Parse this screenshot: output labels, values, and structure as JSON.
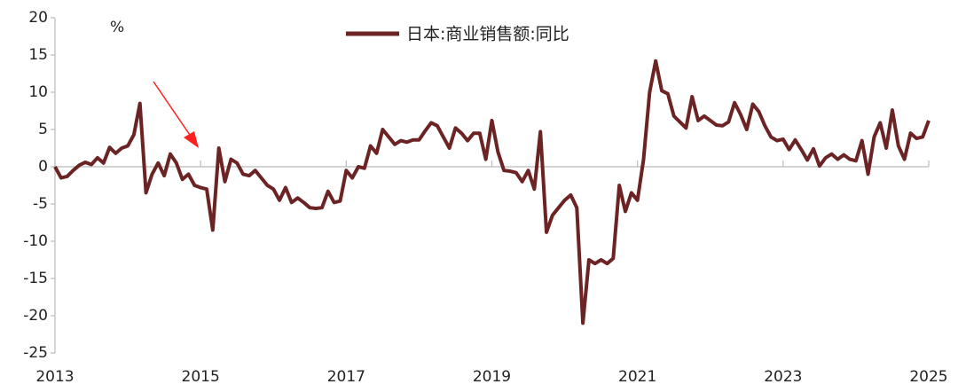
{
  "chart_data": {
    "type": "line",
    "ylabel": "%",
    "categories": [
      "2013",
      null,
      null,
      null,
      null,
      null,
      null,
      null,
      null,
      null,
      null,
      null,
      null,
      null,
      null,
      null,
      null,
      null,
      null,
      null,
      null,
      null,
      null,
      null,
      "2015",
      null,
      null,
      null,
      null,
      null,
      null,
      null,
      null,
      null,
      null,
      null,
      null,
      null,
      null,
      null,
      null,
      null,
      null,
      null,
      null,
      null,
      null,
      null,
      "2017",
      null,
      null,
      null,
      null,
      null,
      null,
      null,
      null,
      null,
      null,
      null,
      null,
      null,
      null,
      null,
      null,
      null,
      null,
      null,
      null,
      null,
      null,
      null,
      "2019",
      null,
      null,
      null,
      null,
      null,
      null,
      null,
      null,
      null,
      null,
      null,
      null,
      null,
      null,
      null,
      null,
      null,
      null,
      null,
      null,
      null,
      null,
      null,
      "2021",
      null,
      null,
      null,
      null,
      null,
      null,
      null,
      null,
      null,
      null,
      null,
      null,
      null,
      null,
      null,
      null,
      null,
      null,
      null,
      null,
      null,
      null,
      null,
      "2023",
      null,
      null,
      null,
      null,
      null,
      null,
      null,
      null,
      null,
      null,
      null,
      null,
      null,
      null,
      null,
      null,
      null,
      null,
      null,
      null,
      null,
      null,
      null,
      "2025"
    ],
    "series": [
      {
        "name": "日本:商业销售额:同比",
        "color": "#6b2323",
        "values": [
          0,
          -1.5,
          -1.3,
          -0.5,
          0.2,
          0.6,
          0.3,
          1.2,
          0.5,
          2.6,
          1.8,
          2.5,
          2.8,
          4.3,
          8.5,
          -3.5,
          -1.0,
          0.5,
          -1.2,
          1.7,
          0.5,
          -1.7,
          -1.0,
          -2.5,
          -2.8,
          -3.0,
          -8.5,
          2.5,
          -2.0,
          1.0,
          0.5,
          -1.0,
          -1.2,
          -0.5,
          -1.5,
          -2.5,
          -3.0,
          -4.5,
          -2.8,
          -4.8,
          -4.2,
          -4.8,
          -5.5,
          -5.6,
          -5.5,
          -3.3,
          -4.8,
          -4.6,
          -0.5,
          -1.5,
          0.0,
          -0.2,
          2.8,
          1.8,
          5.0,
          4.0,
          3.0,
          3.5,
          3.3,
          3.6,
          3.6,
          4.8,
          5.9,
          5.5,
          4.0,
          2.5,
          5.2,
          4.5,
          3.5,
          4.5,
          4.5,
          1.0,
          6.2,
          2.0,
          -0.5,
          -0.6,
          -0.8,
          -2.0,
          -0.5,
          -3.0,
          4.7,
          -8.8,
          -6.5,
          -5.5,
          -4.5,
          -3.8,
          -5.5,
          -21.0,
          -12.5,
          -13.0,
          -12.5,
          -13.0,
          -12.3,
          -2.5,
          -6.0,
          -3.5,
          -4.5,
          1.0,
          10.0,
          14.2,
          10.2,
          9.8,
          6.8,
          6.0,
          5.2,
          9.4,
          6.2,
          6.8,
          6.2,
          5.6,
          5.5,
          6.0,
          8.6,
          7.0,
          5.0,
          8.4,
          7.4,
          5.5,
          4.0,
          3.5,
          3.7,
          2.3,
          3.6,
          2.3,
          0.9,
          2.4,
          0.1,
          1.2,
          1.7,
          1.0,
          1.6,
          1.0,
          0.8,
          3.5,
          -1.0,
          4.0,
          5.9,
          2.5,
          7.6,
          2.8,
          1.0,
          4.5,
          3.8,
          4.0,
          6.2
        ]
      }
    ],
    "ylim": [
      -25,
      20
    ],
    "yticks": [
      20,
      15,
      10,
      5,
      0,
      -5,
      -10,
      -15,
      -20,
      -25
    ],
    "grid": false
  }
}
